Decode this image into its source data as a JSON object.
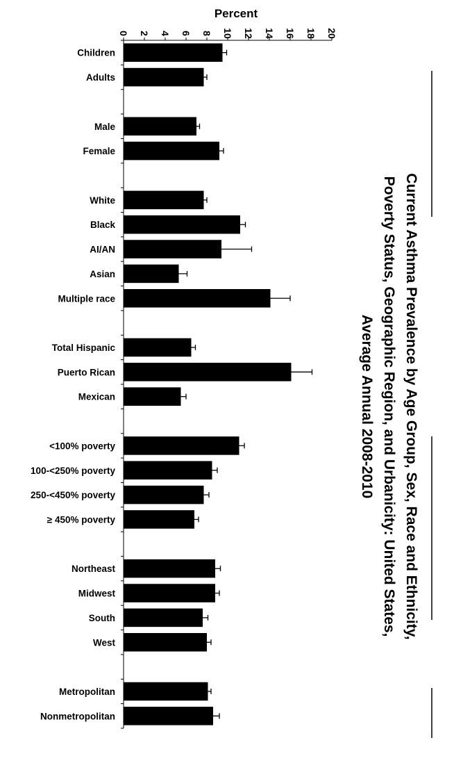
{
  "chart_data": {
    "type": "bar",
    "orientation": "horizontal",
    "title_lines": [
      "Current Asthma Prevalence by Age Group, Sex, Race and Ethnicity,",
      "Poverty Status, Geographic Region, and Urbanicity: United States,",
      "Average Annual 2008-2010"
    ],
    "ylabel": "Percent",
    "ylim": [
      0,
      20
    ],
    "ticks": [
      "0",
      "2",
      "4",
      "6",
      "8",
      "10",
      "12",
      "14",
      "16",
      "18",
      "20"
    ],
    "categories": [
      "Children",
      "Adults",
      "Male",
      "Female",
      "White",
      "Black",
      "AI/AN",
      "Asian",
      "Multiple race",
      "Total Hispanic",
      "Puerto Rican",
      "Mexican",
      "<100% poverty",
      "100-<250% poverty",
      "250-<450% poverty",
      "≥ 450% poverty",
      "Northeast",
      "Midwest",
      "South",
      "West",
      "Metropolitan",
      "Nonmetropolitan"
    ],
    "groups": [
      2,
      2,
      5,
      3,
      4,
      4,
      2
    ],
    "values": [
      9.5,
      7.7,
      7.0,
      9.2,
      7.7,
      11.2,
      9.4,
      5.3,
      14.1,
      6.5,
      16.1,
      5.5,
      11.1,
      8.5,
      7.7,
      6.8,
      8.8,
      8.8,
      7.6,
      8.0,
      8.1,
      8.6
    ],
    "errors": [
      0.4,
      0.3,
      0.3,
      0.4,
      0.3,
      0.5,
      2.9,
      0.8,
      1.9,
      0.4,
      2.0,
      0.5,
      0.5,
      0.5,
      0.5,
      0.4,
      0.5,
      0.4,
      0.5,
      0.4,
      0.3,
      0.6
    ],
    "bar_color": "#000000",
    "grid": false,
    "legend": "none"
  }
}
